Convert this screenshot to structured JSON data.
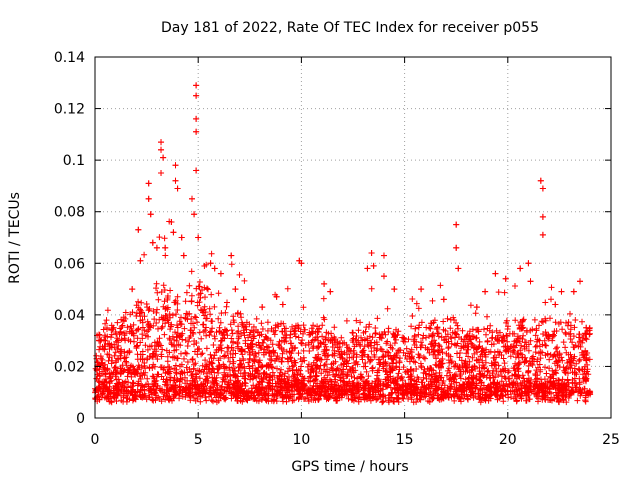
{
  "chart_data": {
    "type": "scatter",
    "title": "Day 181 of 2022, Rate Of TEC Index for receiver p055",
    "xlabel": "GPS time / hours",
    "ylabel": "ROTI / TECUs",
    "xlim": [
      0,
      25
    ],
    "ylim": [
      0,
      0.14
    ],
    "grid": true,
    "x_ticks": [
      0,
      5,
      10,
      15,
      20,
      25
    ],
    "x_tick_labels": [
      "0",
      "5",
      "10",
      "15",
      "20",
      "25"
    ],
    "y_ticks": [
      0,
      0.02,
      0.04,
      0.06,
      0.08,
      0.1,
      0.12,
      0.14
    ],
    "y_tick_labels": [
      "0",
      "0.02",
      "0.04",
      "0.06",
      "0.08",
      "0.1",
      "0.12",
      "0.14"
    ],
    "marker": "plus",
    "marker_color": "#ff0000",
    "notable_points": [
      {
        "x": 0.1,
        "y": 0.032
      },
      {
        "x": 0.2,
        "y": 0.03
      },
      {
        "x": 0.9,
        "y": 0.035
      },
      {
        "x": 1.8,
        "y": 0.05
      },
      {
        "x": 2.1,
        "y": 0.073
      },
      {
        "x": 2.2,
        "y": 0.061
      },
      {
        "x": 2.6,
        "y": 0.091
      },
      {
        "x": 2.6,
        "y": 0.085
      },
      {
        "x": 2.7,
        "y": 0.079
      },
      {
        "x": 2.8,
        "y": 0.068
      },
      {
        "x": 3.0,
        "y": 0.066
      },
      {
        "x": 3.2,
        "y": 0.107
      },
      {
        "x": 3.2,
        "y": 0.104
      },
      {
        "x": 3.3,
        "y": 0.101
      },
      {
        "x": 3.2,
        "y": 0.095
      },
      {
        "x": 3.4,
        "y": 0.066
      },
      {
        "x": 3.7,
        "y": 0.076
      },
      {
        "x": 3.8,
        "y": 0.072
      },
      {
        "x": 3.9,
        "y": 0.098
      },
      {
        "x": 3.9,
        "y": 0.092
      },
      {
        "x": 4.0,
        "y": 0.089
      },
      {
        "x": 4.2,
        "y": 0.07
      },
      {
        "x": 4.3,
        "y": 0.063
      },
      {
        "x": 4.7,
        "y": 0.085
      },
      {
        "x": 4.8,
        "y": 0.079
      },
      {
        "x": 4.9,
        "y": 0.129
      },
      {
        "x": 4.9,
        "y": 0.125
      },
      {
        "x": 4.9,
        "y": 0.116
      },
      {
        "x": 4.9,
        "y": 0.111
      },
      {
        "x": 4.9,
        "y": 0.096
      },
      {
        "x": 5.0,
        "y": 0.07
      },
      {
        "x": 5.6,
        "y": 0.06
      },
      {
        "x": 5.8,
        "y": 0.058
      },
      {
        "x": 6.1,
        "y": 0.056
      },
      {
        "x": 6.6,
        "y": 0.063
      },
      {
        "x": 6.8,
        "y": 0.05
      },
      {
        "x": 7.2,
        "y": 0.046
      },
      {
        "x": 8.1,
        "y": 0.043
      },
      {
        "x": 8.8,
        "y": 0.047
      },
      {
        "x": 9.1,
        "y": 0.044
      },
      {
        "x": 9.9,
        "y": 0.061
      },
      {
        "x": 10.0,
        "y": 0.06
      },
      {
        "x": 11.1,
        "y": 0.052
      },
      {
        "x": 11.4,
        "y": 0.049
      },
      {
        "x": 12.5,
        "y": 0.033
      },
      {
        "x": 13.2,
        "y": 0.058
      },
      {
        "x": 13.4,
        "y": 0.064
      },
      {
        "x": 13.5,
        "y": 0.059
      },
      {
        "x": 14.0,
        "y": 0.063
      },
      {
        "x": 14.0,
        "y": 0.055
      },
      {
        "x": 14.5,
        "y": 0.05
      },
      {
        "x": 15.8,
        "y": 0.05
      },
      {
        "x": 16.4,
        "y": 0.037
      },
      {
        "x": 16.9,
        "y": 0.046
      },
      {
        "x": 17.5,
        "y": 0.075
      },
      {
        "x": 17.5,
        "y": 0.066
      },
      {
        "x": 17.6,
        "y": 0.058
      },
      {
        "x": 18.5,
        "y": 0.043
      },
      {
        "x": 18.9,
        "y": 0.049
      },
      {
        "x": 19.4,
        "y": 0.056
      },
      {
        "x": 19.9,
        "y": 0.054
      },
      {
        "x": 20.6,
        "y": 0.058
      },
      {
        "x": 21.0,
        "y": 0.06
      },
      {
        "x": 21.1,
        "y": 0.053
      },
      {
        "x": 21.6,
        "y": 0.092
      },
      {
        "x": 21.7,
        "y": 0.089
      },
      {
        "x": 21.7,
        "y": 0.078
      },
      {
        "x": 21.7,
        "y": 0.071
      },
      {
        "x": 22.3,
        "y": 0.044
      },
      {
        "x": 22.6,
        "y": 0.049
      },
      {
        "x": 23.2,
        "y": 0.049
      },
      {
        "x": 23.5,
        "y": 0.053
      },
      {
        "x": 23.8,
        "y": 0.035
      }
    ]
  }
}
